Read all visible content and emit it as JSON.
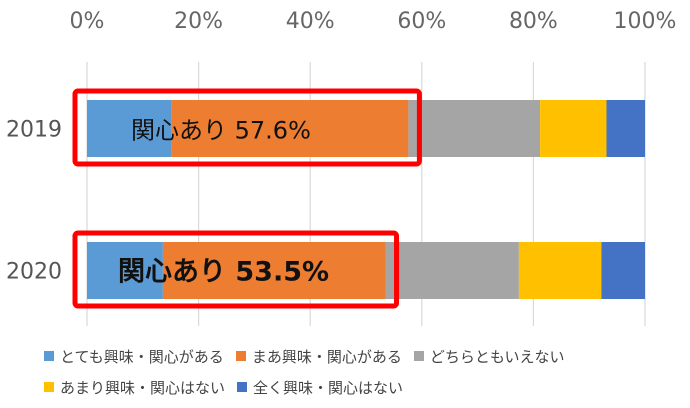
{
  "chart_data": {
    "type": "bar",
    "orientation": "horizontal",
    "stacked": true,
    "categories": [
      "2019",
      "2020"
    ],
    "xlim": [
      0,
      100
    ],
    "xticks": [
      "0%",
      "20%",
      "40%",
      "60%",
      "80%",
      "100%"
    ],
    "grid": true,
    "series": [
      {
        "name": "とても興味・関心がある",
        "color": "#5B9BD5",
        "values": [
          15.2,
          13.6
        ]
      },
      {
        "name": "まあ興味・関心がある",
        "color": "#ED7D31",
        "values": [
          42.4,
          39.9
        ]
      },
      {
        "name": "どちらともいえない",
        "color": "#A5A5A5",
        "values": [
          23.6,
          23.9
        ]
      },
      {
        "name": "あまり興味・関心はない",
        "color": "#FFC000",
        "values": [
          11.9,
          14.8
        ]
      },
      {
        "name": "全く興味・関心はない",
        "color": "#4472C4",
        "values": [
          6.9,
          7.8
        ]
      }
    ],
    "annotations": [
      {
        "category": "2019",
        "text": "関心あり 57.6%",
        "bold": false,
        "highlight_until": 57.6
      },
      {
        "category": "2020",
        "text": "関心あり 53.5%",
        "bold": true,
        "highlight_until": 53.5
      }
    ],
    "highlight_color": "#FF0000",
    "legend_position": "bottom"
  }
}
